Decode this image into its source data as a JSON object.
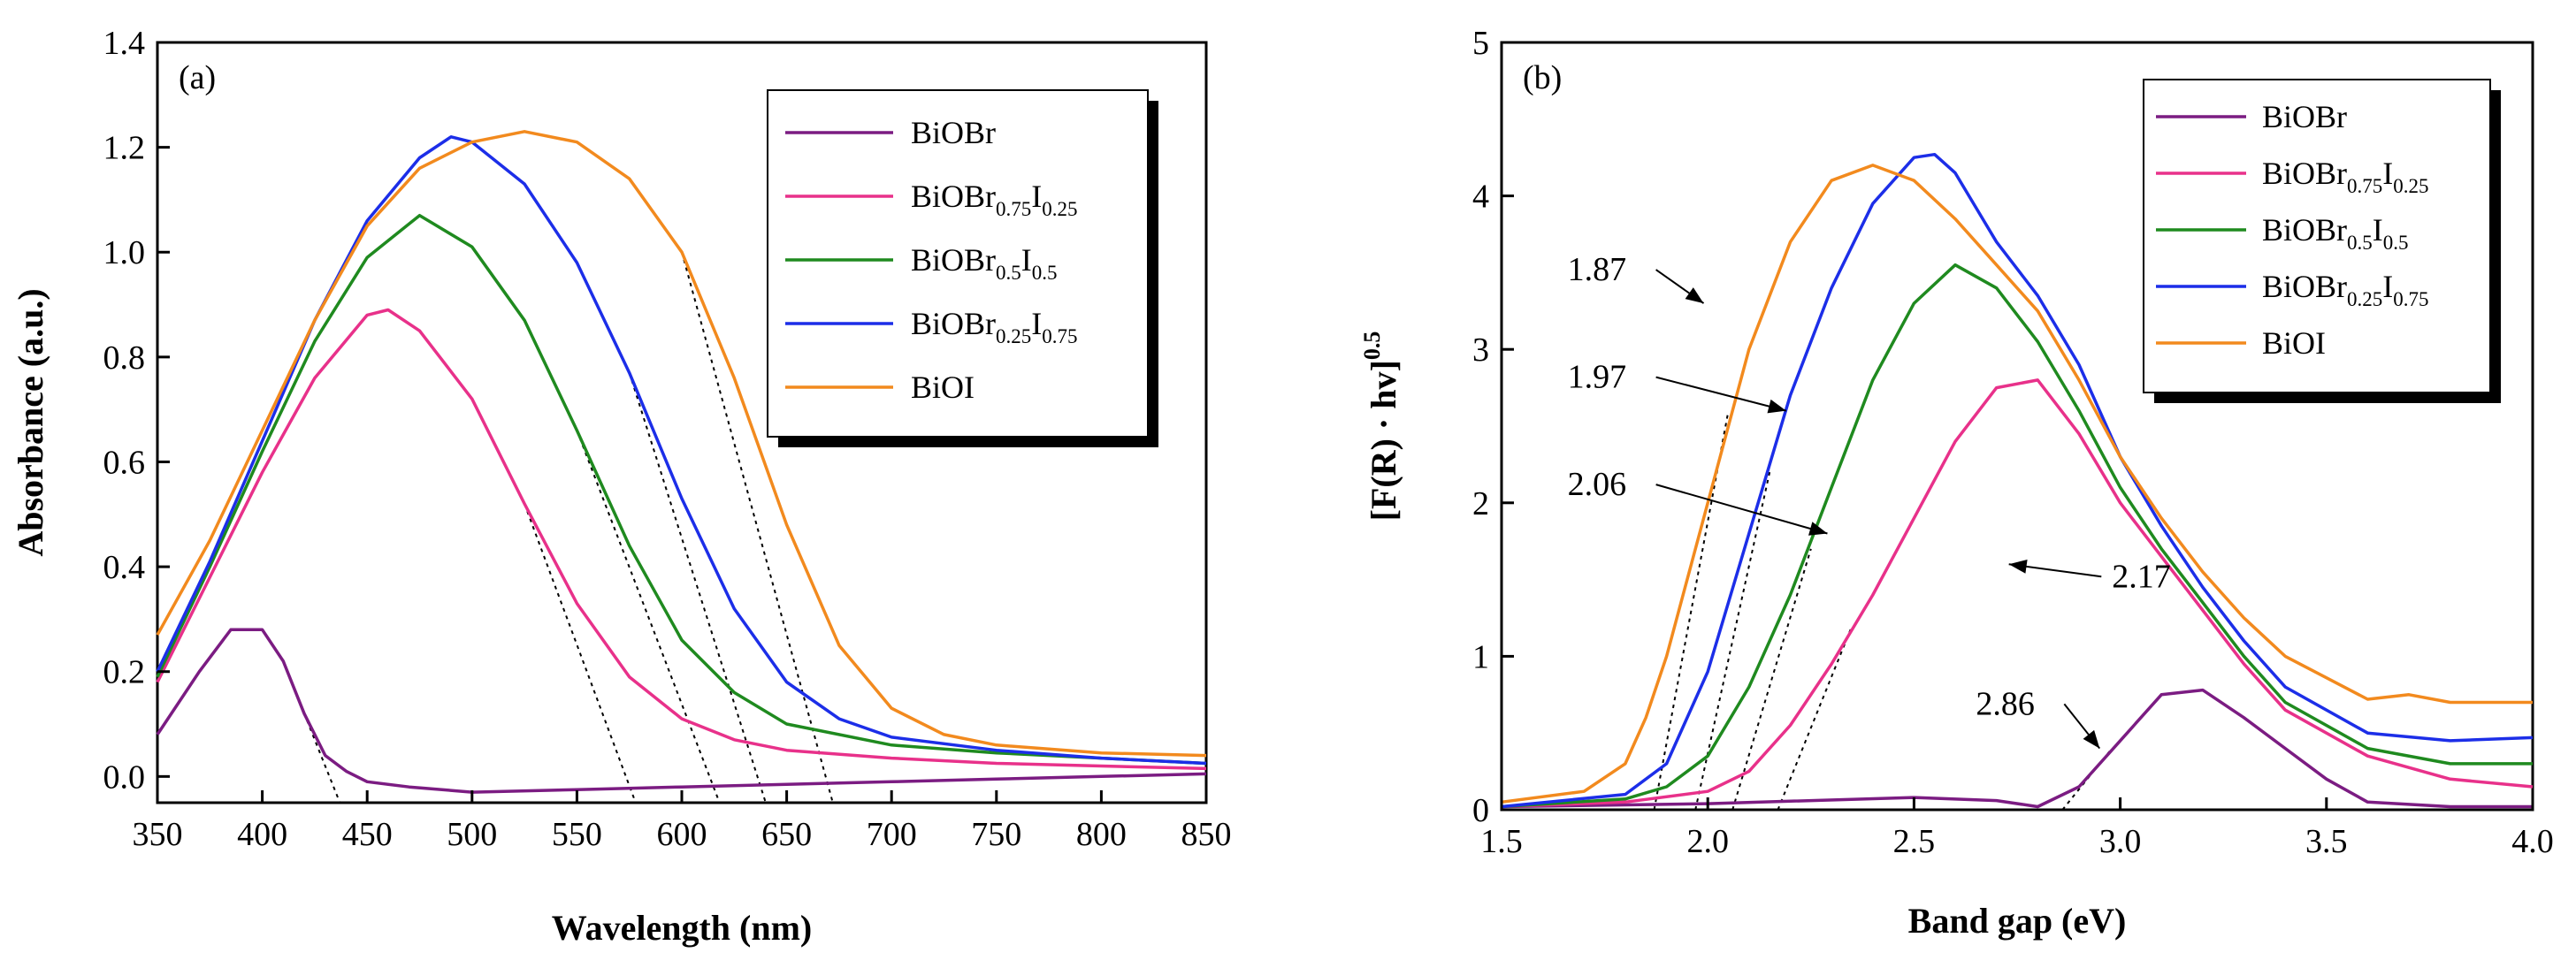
{
  "chart_data": [
    {
      "type": "line",
      "panel_label": "(a)",
      "xlabel": "Wavelength (nm)",
      "ylabel": "Absorbance (a.u.)",
      "xlim": [
        350,
        850
      ],
      "ylim": [
        -0.05,
        1.4
      ],
      "x_ticks": [
        350,
        400,
        450,
        500,
        550,
        600,
        650,
        700,
        750,
        800,
        850
      ],
      "x_tick_labels": [
        "350",
        "400",
        "450",
        "500",
        "550",
        "600",
        "650",
        "700",
        "750",
        "800",
        "850"
      ],
      "y_ticks": [
        0.0,
        0.2,
        0.4,
        0.6,
        0.8,
        1.0,
        1.2,
        1.4
      ],
      "y_tick_labels": [
        "0.0",
        "0.2",
        "0.4",
        "0.6",
        "0.8",
        "1.0",
        "1.2",
        "1.4"
      ],
      "legend_position": "top-right",
      "series": [
        {
          "name": "BiOBr",
          "label_main": "BiOBr",
          "label_parts": [],
          "color": "#7B1C82",
          "x": [
            350,
            370,
            385,
            400,
            410,
            420,
            430,
            440,
            450,
            470,
            500,
            550,
            600,
            650,
            700,
            750,
            800,
            850
          ],
          "y": [
            0.08,
            0.2,
            0.28,
            0.28,
            0.22,
            0.12,
            0.04,
            0.01,
            -0.01,
            -0.02,
            -0.03,
            -0.025,
            -0.02,
            -0.015,
            -0.01,
            -0.005,
            0.0,
            0.005
          ]
        },
        {
          "name": "BiOBr0.75I0.25",
          "label_main": "BiOBr",
          "label_parts": [
            [
              "0.75",
              "sub"
            ],
            [
              "I",
              "main"
            ],
            [
              "0.25",
              "sub"
            ]
          ],
          "color": "#E8318A",
          "x": [
            350,
            375,
            400,
            425,
            450,
            460,
            475,
            500,
            525,
            550,
            575,
            600,
            625,
            650,
            700,
            750,
            800,
            850
          ],
          "y": [
            0.18,
            0.38,
            0.58,
            0.76,
            0.88,
            0.89,
            0.85,
            0.72,
            0.52,
            0.33,
            0.19,
            0.11,
            0.07,
            0.05,
            0.035,
            0.025,
            0.02,
            0.015
          ]
        },
        {
          "name": "BiOBr0.5I0.5",
          "label_main": "BiOBr",
          "label_parts": [
            [
              "0.5",
              "sub"
            ],
            [
              "I",
              "main"
            ],
            [
              "0.5",
              "sub"
            ]
          ],
          "color": "#1F8A1F",
          "x": [
            350,
            375,
            400,
            425,
            450,
            475,
            500,
            525,
            550,
            575,
            600,
            625,
            650,
            700,
            750,
            800,
            850
          ],
          "y": [
            0.19,
            0.4,
            0.62,
            0.83,
            0.99,
            1.07,
            1.01,
            0.87,
            0.66,
            0.44,
            0.26,
            0.16,
            0.1,
            0.06,
            0.045,
            0.035,
            0.025
          ]
        },
        {
          "name": "BiOBr0.25I0.75",
          "label_main": "BiOBr",
          "label_parts": [
            [
              "0.25",
              "sub"
            ],
            [
              "I",
              "main"
            ],
            [
              "0.75",
              "sub"
            ]
          ],
          "color": "#1C2EE8",
          "x": [
            350,
            375,
            400,
            425,
            450,
            475,
            490,
            500,
            525,
            550,
            575,
            600,
            625,
            650,
            675,
            700,
            750,
            800,
            850
          ],
          "y": [
            0.2,
            0.41,
            0.64,
            0.87,
            1.06,
            1.18,
            1.22,
            1.21,
            1.13,
            0.98,
            0.77,
            0.53,
            0.32,
            0.18,
            0.11,
            0.075,
            0.05,
            0.035,
            0.025
          ]
        },
        {
          "name": "BiOI",
          "label_main": "BiOI",
          "label_parts": [],
          "color": "#F28A1E",
          "x": [
            350,
            375,
            400,
            425,
            450,
            475,
            500,
            525,
            550,
            575,
            600,
            625,
            650,
            675,
            700,
            725,
            750,
            800,
            850
          ],
          "y": [
            0.27,
            0.45,
            0.66,
            0.87,
            1.05,
            1.16,
            1.21,
            1.23,
            1.21,
            1.14,
            1.0,
            0.76,
            0.48,
            0.25,
            0.13,
            0.08,
            0.06,
            0.045,
            0.04
          ]
        }
      ],
      "tangent_lines": [
        {
          "series": "BiOBr0.75I0.25",
          "from": [
            525,
            0.52
          ],
          "to": [
            578,
            -0.05
          ]
        },
        {
          "series": "BiOBr0.5I0.5",
          "from": [
            550,
            0.66
          ],
          "to": [
            618,
            -0.05
          ]
        },
        {
          "series": "BiOBr0.25I0.75",
          "from": [
            575,
            0.77
          ],
          "to": [
            640,
            -0.05
          ]
        },
        {
          "series": "BiOI",
          "from": [
            600,
            1.0
          ],
          "to": [
            672,
            -0.05
          ]
        },
        {
          "series": "BiOBr",
          "from": [
            410,
            0.22
          ],
          "to": [
            437,
            -0.05
          ]
        }
      ]
    },
    {
      "type": "line",
      "panel_label": "(b)",
      "xlabel": "Band gap (eV)",
      "ylabel": "[F(R) · hv]",
      "ylabel_superscript": "0.5",
      "xlim": [
        1.5,
        4.0
      ],
      "ylim": [
        0,
        5
      ],
      "x_ticks": [
        1.5,
        2.0,
        2.5,
        3.0,
        3.5,
        4.0
      ],
      "x_tick_labels": [
        "1.5",
        "2.0",
        "2.5",
        "3.0",
        "3.5",
        "4.0"
      ],
      "y_ticks": [
        0,
        1,
        2,
        3,
        4,
        5
      ],
      "y_tick_labels": [
        "0",
        "1",
        "2",
        "3",
        "4",
        "5"
      ],
      "legend_position": "top-right",
      "series": [
        {
          "name": "BiOBr",
          "label_main": "BiOBr",
          "label_parts": [],
          "color": "#7B1C82",
          "x": [
            1.5,
            2.0,
            2.5,
            2.7,
            2.8,
            2.9,
            3.0,
            3.1,
            3.2,
            3.3,
            3.4,
            3.5,
            3.6,
            3.8,
            4.0
          ],
          "y": [
            0.02,
            0.04,
            0.08,
            0.06,
            0.02,
            0.15,
            0.45,
            0.75,
            0.78,
            0.6,
            0.4,
            0.2,
            0.05,
            0.02,
            0.02
          ]
        },
        {
          "name": "BiOBr0.75I0.25",
          "label_main": "BiOBr",
          "label_parts": [
            [
              "0.75",
              "sub"
            ],
            [
              "I",
              "main"
            ],
            [
              "0.25",
              "sub"
            ]
          ],
          "color": "#E8318A",
          "x": [
            1.5,
            1.8,
            2.0,
            2.1,
            2.2,
            2.3,
            2.4,
            2.5,
            2.6,
            2.7,
            2.8,
            2.9,
            3.0,
            3.1,
            3.2,
            3.3,
            3.4,
            3.6,
            3.8,
            4.0
          ],
          "y": [
            0.02,
            0.05,
            0.12,
            0.25,
            0.55,
            0.95,
            1.4,
            1.9,
            2.4,
            2.75,
            2.8,
            2.45,
            2.0,
            1.65,
            1.3,
            0.95,
            0.65,
            0.35,
            0.2,
            0.15
          ]
        },
        {
          "name": "BiOBr0.5I0.5",
          "label_main": "BiOBr",
          "label_parts": [
            [
              "0.5",
              "sub"
            ],
            [
              "I",
              "main"
            ],
            [
              "0.5",
              "sub"
            ]
          ],
          "color": "#1F8A1F",
          "x": [
            1.5,
            1.8,
            1.9,
            2.0,
            2.1,
            2.2,
            2.3,
            2.4,
            2.5,
            2.6,
            2.7,
            2.8,
            2.9,
            3.0,
            3.1,
            3.2,
            3.3,
            3.4,
            3.6,
            3.8,
            4.0
          ],
          "y": [
            0.02,
            0.07,
            0.15,
            0.35,
            0.8,
            1.4,
            2.1,
            2.8,
            3.3,
            3.55,
            3.4,
            3.05,
            2.6,
            2.1,
            1.7,
            1.35,
            1.0,
            0.7,
            0.4,
            0.3,
            0.3
          ]
        },
        {
          "name": "BiOBr0.25I0.75",
          "label_main": "BiOBr",
          "label_parts": [
            [
              "0.25",
              "sub"
            ],
            [
              "I",
              "main"
            ],
            [
              "0.75",
              "sub"
            ]
          ],
          "color": "#1C2EE8",
          "x": [
            1.5,
            1.8,
            1.9,
            2.0,
            2.1,
            2.2,
            2.3,
            2.4,
            2.5,
            2.55,
            2.6,
            2.7,
            2.8,
            2.9,
            3.0,
            3.1,
            3.2,
            3.3,
            3.4,
            3.6,
            3.8,
            4.0
          ],
          "y": [
            0.02,
            0.1,
            0.3,
            0.9,
            1.8,
            2.7,
            3.4,
            3.95,
            4.25,
            4.27,
            4.15,
            3.7,
            3.35,
            2.9,
            2.3,
            1.85,
            1.45,
            1.1,
            0.8,
            0.5,
            0.45,
            0.47
          ]
        },
        {
          "name": "BiOI",
          "label_main": "BiOI",
          "label_parts": [],
          "color": "#F28A1E",
          "x": [
            1.5,
            1.7,
            1.8,
            1.85,
            1.9,
            2.0,
            2.1,
            2.2,
            2.3,
            2.4,
            2.5,
            2.6,
            2.7,
            2.8,
            2.9,
            3.0,
            3.1,
            3.2,
            3.3,
            3.4,
            3.6,
            3.7,
            3.8,
            4.0
          ],
          "y": [
            0.05,
            0.12,
            0.3,
            0.6,
            1.0,
            2.0,
            3.0,
            3.7,
            4.1,
            4.2,
            4.1,
            3.85,
            3.55,
            3.25,
            2.8,
            2.3,
            1.9,
            1.55,
            1.25,
            1.0,
            0.72,
            0.75,
            0.7,
            0.7
          ]
        }
      ],
      "tangent_lines": [
        {
          "series": "BiOI",
          "from": [
            1.87,
            0
          ],
          "to": [
            2.05,
            2.6
          ]
        },
        {
          "series": "BiOBr0.25I0.75",
          "from": [
            1.97,
            0
          ],
          "to": [
            2.15,
            2.2
          ]
        },
        {
          "series": "BiOBr0.5I0.5",
          "from": [
            2.06,
            0
          ],
          "to": [
            2.25,
            1.7
          ]
        },
        {
          "series": "BiOBr0.75I0.25",
          "from": [
            2.17,
            0
          ],
          "to": [
            2.35,
            1.2
          ]
        },
        {
          "series": "BiOBr",
          "from": [
            2.86,
            0
          ],
          "to": [
            2.98,
            0.4
          ]
        }
      ],
      "annotations": [
        {
          "text": "1.87",
          "label_at": [
            1.66,
            3.45
          ],
          "arrow_to": [
            1.99,
            3.3
          ]
        },
        {
          "text": "1.97",
          "label_at": [
            1.66,
            2.75
          ],
          "arrow_to": [
            2.19,
            2.6
          ]
        },
        {
          "text": "2.06",
          "label_at": [
            1.66,
            2.05
          ],
          "arrow_to": [
            2.29,
            1.8
          ]
        },
        {
          "text": "2.17",
          "label_at": [
            2.98,
            1.45
          ],
          "arrow_to": [
            2.73,
            1.6
          ]
        },
        {
          "text": "2.86",
          "label_at": [
            2.65,
            0.62
          ],
          "arrow_to": [
            2.95,
            0.4
          ]
        }
      ]
    }
  ]
}
